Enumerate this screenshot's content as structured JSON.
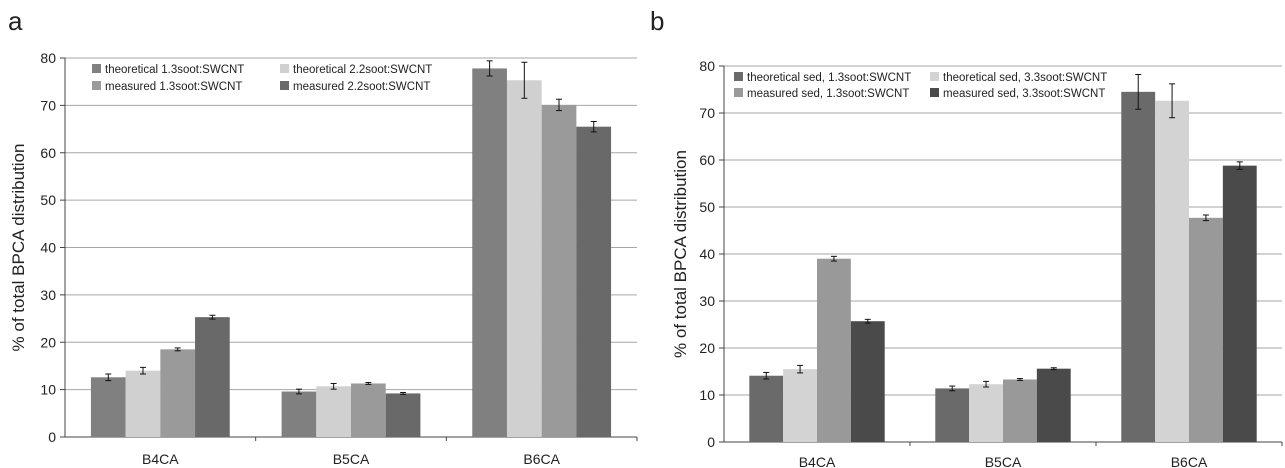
{
  "panels": {
    "a": {
      "letter": "a"
    },
    "b": {
      "letter": "b"
    }
  },
  "chart_data": [
    {
      "type": "bar",
      "panel": "a",
      "ylabel": "% of total BPCA distribution",
      "xlabel": "",
      "ylim": [
        0,
        80
      ],
      "yticks": [
        0,
        10,
        20,
        30,
        40,
        50,
        60,
        70,
        80
      ],
      "grid": true,
      "legend_position": "top-left",
      "categories": [
        "B4CA",
        "B5CA",
        "B6CA"
      ],
      "series": [
        {
          "name": "theoretical 1.3soot:SWCNT",
          "color": "#808080",
          "values": [
            12.6,
            9.6,
            77.8
          ],
          "errors": [
            0.7,
            0.5,
            1.6
          ]
        },
        {
          "name": "theoretical 2.2soot:SWCNT",
          "color": "#d0d0d0",
          "values": [
            14.0,
            10.7,
            75.3
          ],
          "errors": [
            0.7,
            0.6,
            3.8
          ]
        },
        {
          "name": "measured 1.3soot:SWCNT",
          "color": "#9a9a9a",
          "values": [
            18.5,
            11.3,
            70.1
          ],
          "errors": [
            0.3,
            0.2,
            1.2
          ]
        },
        {
          "name": "measured 2.2soot:SWCNT",
          "color": "#696969",
          "values": [
            25.3,
            9.2,
            65.5
          ],
          "errors": [
            0.4,
            0.2,
            1.1
          ]
        }
      ]
    },
    {
      "type": "bar",
      "panel": "b",
      "ylabel": "% of total BPCA distribution",
      "xlabel": "",
      "ylim": [
        0,
        80
      ],
      "yticks": [
        0,
        10,
        20,
        30,
        40,
        50,
        60,
        70,
        80
      ],
      "grid": true,
      "legend_position": "top-left",
      "categories": [
        "B4CA",
        "B5CA",
        "B6CA"
      ],
      "series": [
        {
          "name": "theoretical sed, 1.3soot:SWCNT",
          "color": "#6a6a6a",
          "values": [
            14.1,
            11.4,
            74.5
          ],
          "errors": [
            0.7,
            0.5,
            3.7
          ]
        },
        {
          "name": "theoretical sed, 3.3soot:SWCNT",
          "color": "#d3d3d3",
          "values": [
            15.5,
            12.3,
            72.6
          ],
          "errors": [
            0.8,
            0.6,
            3.6
          ]
        },
        {
          "name": "measured sed, 1.3soot:SWCNT",
          "color": "#999999",
          "values": [
            39.0,
            13.3,
            47.7
          ],
          "errors": [
            0.5,
            0.2,
            0.6
          ]
        },
        {
          "name": "measured sed, 3.3soot:SWCNT",
          "color": "#4a4a4a",
          "values": [
            25.7,
            15.6,
            58.8
          ],
          "errors": [
            0.4,
            0.2,
            0.8
          ]
        }
      ]
    }
  ]
}
